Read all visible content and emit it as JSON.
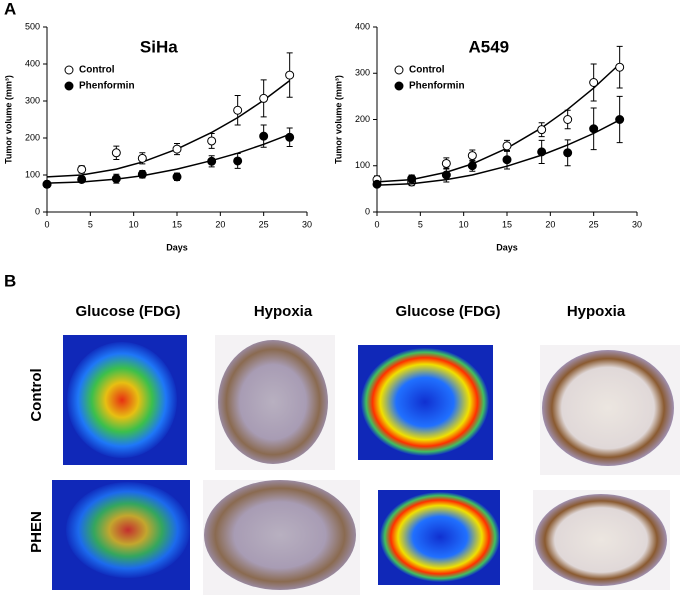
{
  "panel_a": {
    "label": "A"
  },
  "chart_data": [
    {
      "type": "scatter",
      "title": "SiHa",
      "xlabel": "Days",
      "ylabel": "Tumor volume (mm³)",
      "x": [
        0,
        4,
        8,
        11,
        15,
        19,
        22,
        25,
        28
      ],
      "series": [
        {
          "name": "Control",
          "color": "#000000",
          "marker": "open",
          "values": [
            75,
            115,
            160,
            145,
            170,
            192,
            275,
            307,
            370
          ],
          "errors": [
            8,
            10,
            18,
            15,
            15,
            20,
            40,
            50,
            60
          ],
          "fit": [
            95,
            100,
            116,
            135,
            170,
            215,
            255,
            302,
            355
          ]
        },
        {
          "name": "Phenformin",
          "color": "#000000",
          "marker": "filled",
          "values": [
            75,
            88,
            90,
            102,
            95,
            137,
            138,
            205,
            202
          ],
          "errors": [
            8,
            8,
            12,
            10,
            10,
            15,
            20,
            30,
            25
          ],
          "fit": [
            78,
            81,
            89,
            98,
            116,
            139,
            159,
            183,
            210
          ]
        }
      ],
      "xlim": [
        0,
        30
      ],
      "xticks": [
        0,
        5,
        10,
        15,
        20,
        25,
        30
      ],
      "ylim": [
        0,
        500
      ],
      "yticks": [
        0,
        100,
        200,
        300,
        400,
        500
      ]
    },
    {
      "type": "scatter",
      "title": "A549",
      "xlabel": "Days",
      "ylabel": "Tumor volume (mm³)",
      "x": [
        0,
        4,
        8,
        11,
        15,
        19,
        22,
        25,
        28
      ],
      "series": [
        {
          "name": "Control",
          "color": "#000000",
          "marker": "open",
          "values": [
            70,
            65,
            105,
            122,
            143,
            178,
            200,
            280,
            313
          ],
          "errors": [
            8,
            8,
            12,
            12,
            12,
            15,
            20,
            40,
            45
          ],
          "fit": [
            65,
            70,
            86,
            104,
            138,
            182,
            222,
            268,
            320
          ]
        },
        {
          "name": "Phenformin",
          "color": "#000000",
          "marker": "filled",
          "values": [
            60,
            72,
            80,
            100,
            113,
            130,
            128,
            180,
            200
          ],
          "errors": [
            6,
            8,
            15,
            12,
            20,
            25,
            28,
            45,
            50
          ],
          "fit": [
            58,
            61,
            70,
            80,
            99,
            123,
            145,
            170,
            199
          ]
        }
      ],
      "xlim": [
        0,
        30
      ],
      "xticks": [
        0,
        5,
        10,
        15,
        20,
        25,
        30
      ],
      "ylim": [
        0,
        400
      ],
      "yticks": [
        0,
        100,
        200,
        300,
        400
      ]
    }
  ],
  "panel_b": {
    "label": "B",
    "columns": [
      "Glucose (FDG)",
      "Hypoxia",
      "Glucose (FDG)",
      "Hypoxia"
    ],
    "rows": [
      "Control",
      "PHEN"
    ]
  }
}
